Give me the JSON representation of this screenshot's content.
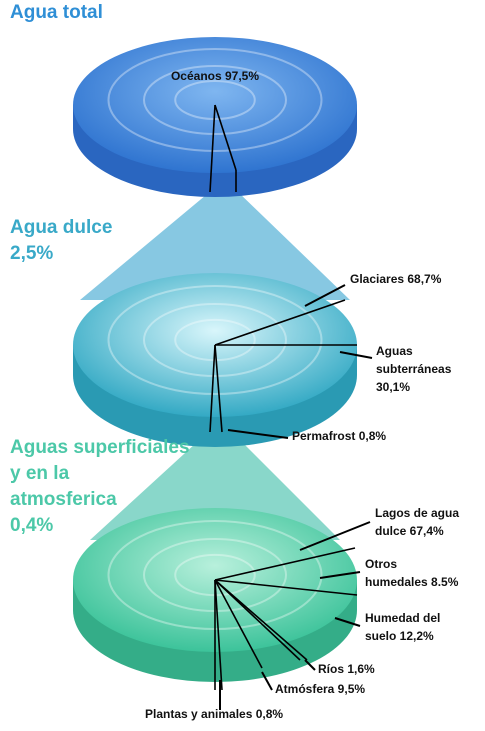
{
  "sections": [
    {
      "title": [
        "Agua total"
      ],
      "labels": [
        [
          "Océanos 97,5%"
        ]
      ]
    },
    {
      "title": [
        "Agua dulce",
        "2,5%"
      ],
      "labels": [
        [
          "Glaciares 68,7%"
        ],
        [
          "Aguas",
          "subterráneas",
          "30,1%"
        ],
        [
          "Permafrost 0,8%"
        ]
      ]
    },
    {
      "title": [
        "Aguas superficiales",
        "y en la",
        "atmosferica",
        "0,4%"
      ],
      "labels": [
        [
          "Lagos de agua",
          "dulce 67,4%"
        ],
        [
          "Otros",
          "humedales 8.5%"
        ],
        [
          "Humedad del",
          "suelo 12,2%"
        ],
        [
          "Ríos 1,6%"
        ],
        [
          "Atmósfera 9,5%"
        ],
        [
          "Plantas y animales 0,8%"
        ]
      ]
    }
  ]
}
